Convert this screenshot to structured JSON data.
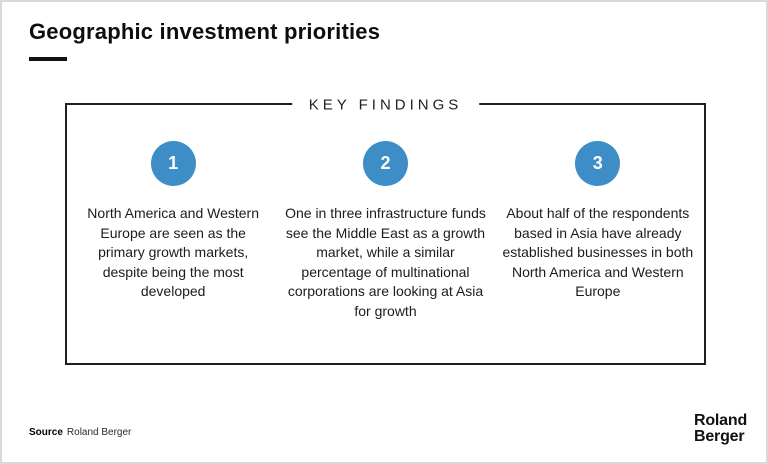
{
  "page": {
    "title": "Geographic investment priorities"
  },
  "key_findings": {
    "heading": "KEY FINDINGS",
    "items": [
      {
        "number": "1",
        "text": "North America and Western Europe are seen as the primary growth markets, despite being the most developed"
      },
      {
        "number": "2",
        "text": "One in three infrastructure funds see the Middle East as a growth market, while a similar percentage of multinational corporations are looking at Asia for growth"
      },
      {
        "number": "3",
        "text": "About half of the respondents based in Asia have already established businesses in both North America and Western Europe"
      }
    ]
  },
  "footer": {
    "source_label": "Source",
    "source_text": "Roland Berger",
    "logo_line1": "Roland",
    "logo_line2": "Berger"
  },
  "colors": {
    "accent_blue": "#3D8DC6",
    "box_border": "#1f1f1f",
    "title_black": "#0d0d0d"
  }
}
